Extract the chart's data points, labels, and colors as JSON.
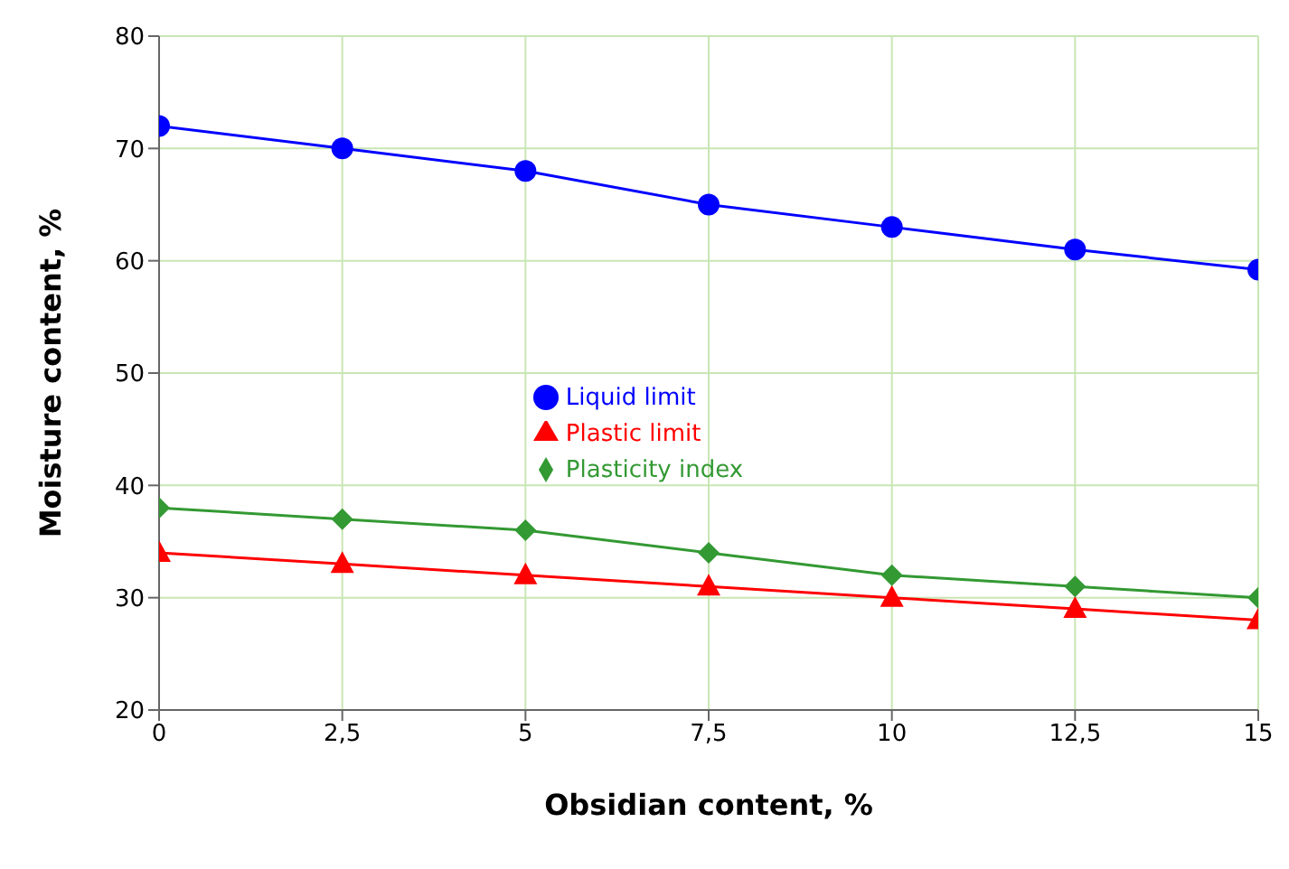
{
  "chart_data": {
    "type": "line",
    "xlabel": "Obsidian content, %",
    "ylabel": "Moisture content, %",
    "x": [
      0,
      2.5,
      5,
      7.5,
      10,
      12.5,
      15
    ],
    "series": [
      {
        "name": "Liquid limit",
        "color": "#0000ff",
        "marker": "circle",
        "values": [
          72,
          70,
          68,
          65,
          63,
          61,
          59.2
        ]
      },
      {
        "name": "Plastic limit",
        "color": "#ff0000",
        "marker": "triangle",
        "values": [
          34,
          33,
          32,
          31,
          30,
          29,
          28
        ]
      },
      {
        "name": "Plasticity index",
        "color": "#339933",
        "marker": "diamond",
        "values": [
          38,
          37,
          36,
          34,
          32,
          31,
          30
        ]
      }
    ],
    "xlim": [
      0,
      15
    ],
    "xticks": [
      0,
      {
        "value": 2.5,
        "label": "2,5"
      },
      5,
      {
        "value": 7.5,
        "label": "7,5"
      },
      10,
      {
        "value": 12.5,
        "label": "12,5"
      },
      15
    ],
    "ylim": [
      20,
      80
    ],
    "yticks": [
      20,
      30,
      40,
      50,
      60,
      70,
      80
    ],
    "grid": true,
    "legend": "center"
  }
}
